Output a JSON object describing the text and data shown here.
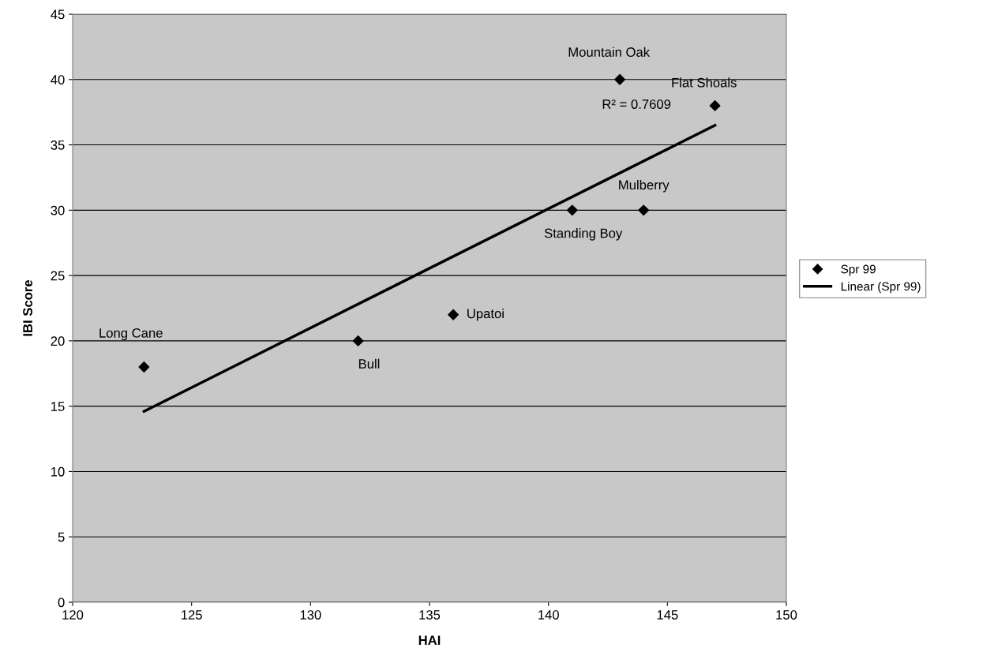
{
  "chart_data": {
    "type": "scatter",
    "xlabel": "HAI",
    "ylabel": "IBI Score",
    "xlim": [
      120,
      150
    ],
    "xticks": [
      120,
      125,
      130,
      135,
      140,
      145,
      150
    ],
    "ylim": [
      0,
      45
    ],
    "yticks": [
      0,
      5,
      10,
      15,
      20,
      25,
      30,
      35,
      40,
      45
    ],
    "grid": "y",
    "legend": "right",
    "series": [
      {
        "name": "Spr 99",
        "marker": "diamond",
        "color": "#000000",
        "x": [
          123,
          132,
          136,
          141,
          144,
          143,
          147
        ],
        "values": [
          18,
          20,
          22,
          30,
          30,
          40,
          38
        ]
      },
      {
        "name": "Linear (Spr 99)",
        "type": "line",
        "marker": "none",
        "color": "#000000",
        "x": [
          123,
          147
        ],
        "values": [
          14.6,
          36.5
        ]
      }
    ],
    "annotations": [
      {
        "text": "Long Cane",
        "x": 123,
        "y": 18
      },
      {
        "text": "Bull",
        "x": 132,
        "y": 20
      },
      {
        "text": "Upatoi",
        "x": 136,
        "y": 22
      },
      {
        "text": "Standing Boy",
        "x": 141,
        "y": 30
      },
      {
        "text": "Mulberry",
        "x": 144,
        "y": 30
      },
      {
        "text": "Mountain Oak",
        "x": 143,
        "y": 40
      },
      {
        "text": "Flat Shoals",
        "x": 147,
        "y": 38
      },
      "R² = 0.7609"
    ]
  }
}
